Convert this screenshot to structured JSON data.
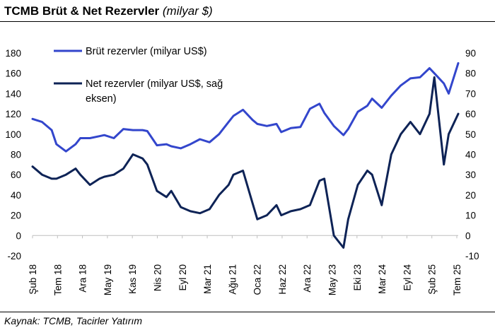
{
  "title": {
    "main": "TCMB Brüt & Net Rezervler",
    "unit": "(milyar $)"
  },
  "source": "Kaynak: TCMB, Tacirler Yatırım",
  "chart_data": {
    "type": "line",
    "title": "TCMB Brüt & Net Rezervler (milyar $)",
    "x_ticks": [
      "Şub 18",
      "Tem 18",
      "Ara 18",
      "May 19",
      "Kas 19",
      "Nis 20",
      "Eyl 20",
      "Mar 21",
      "Ağu 21",
      "Oca 22",
      "Haz 22",
      "Ara 22",
      "May 23",
      "Eki 23",
      "Mar 24",
      "Eyl 24",
      "Şub 25",
      "Tem 25"
    ],
    "y_left": {
      "ticks": [
        -20,
        0,
        20,
        40,
        60,
        80,
        100,
        120,
        140,
        160,
        180
      ],
      "range": [
        -20,
        180
      ]
    },
    "y_right": {
      "ticks": [
        -10,
        0,
        10,
        20,
        30,
        40,
        50,
        60,
        70,
        80,
        90
      ],
      "range": [
        -10,
        90
      ]
    },
    "legend": {
      "position": "top-left"
    },
    "colors": {
      "gross": "#3346cc",
      "net": "#0e2356"
    },
    "x": [
      "2018-02",
      "2018-04",
      "2018-06",
      "2018-07",
      "2018-09",
      "2018-11",
      "2018-12",
      "2019-02",
      "2019-04",
      "2019-05",
      "2019-07",
      "2019-09",
      "2019-11",
      "2020-01",
      "2020-02",
      "2020-04",
      "2020-06",
      "2020-07",
      "2020-09",
      "2020-11",
      "2021-01",
      "2021-03",
      "2021-05",
      "2021-07",
      "2021-08",
      "2021-10",
      "2021-12",
      "2022-01",
      "2022-03",
      "2022-05",
      "2022-06",
      "2022-08",
      "2022-10",
      "2022-12",
      "2023-02",
      "2023-03",
      "2023-05",
      "2023-07",
      "2023-08",
      "2023-10",
      "2023-12",
      "2024-01",
      "2024-03",
      "2024-05",
      "2024-07",
      "2024-09",
      "2024-11",
      "2025-01",
      "2025-02",
      "2025-04",
      "2025-05",
      "2025-07"
    ],
    "series": [
      {
        "name": "Brüt rezervler (milyar US$)",
        "axis": "left",
        "values": [
          115,
          112,
          104,
          90,
          83,
          90,
          96,
          96,
          98,
          99,
          96,
          105,
          104,
          104,
          103,
          89,
          90,
          88,
          86,
          90,
          95,
          92,
          100,
          112,
          118,
          124,
          114,
          110,
          108,
          110,
          102,
          106,
          107,
          125,
          130,
          121,
          108,
          99,
          105,
          122,
          128,
          135,
          126,
          138,
          148,
          155,
          156,
          165,
          160,
          150,
          140,
          170
        ]
      },
      {
        "name": "Net rezervler (milyar US$, sağ eksen)",
        "axis": "right",
        "values": [
          34,
          30,
          28,
          28,
          30,
          33,
          30,
          25,
          28,
          29,
          30,
          33,
          40,
          38,
          35,
          22,
          19,
          22,
          14,
          12,
          11,
          13,
          20,
          25,
          30,
          32,
          16,
          8,
          10,
          15,
          10,
          12,
          13,
          15,
          27,
          28,
          0,
          -6,
          8,
          25,
          32,
          30,
          15,
          40,
          50,
          56,
          50,
          60,
          78,
          35,
          50,
          60
        ]
      }
    ]
  }
}
